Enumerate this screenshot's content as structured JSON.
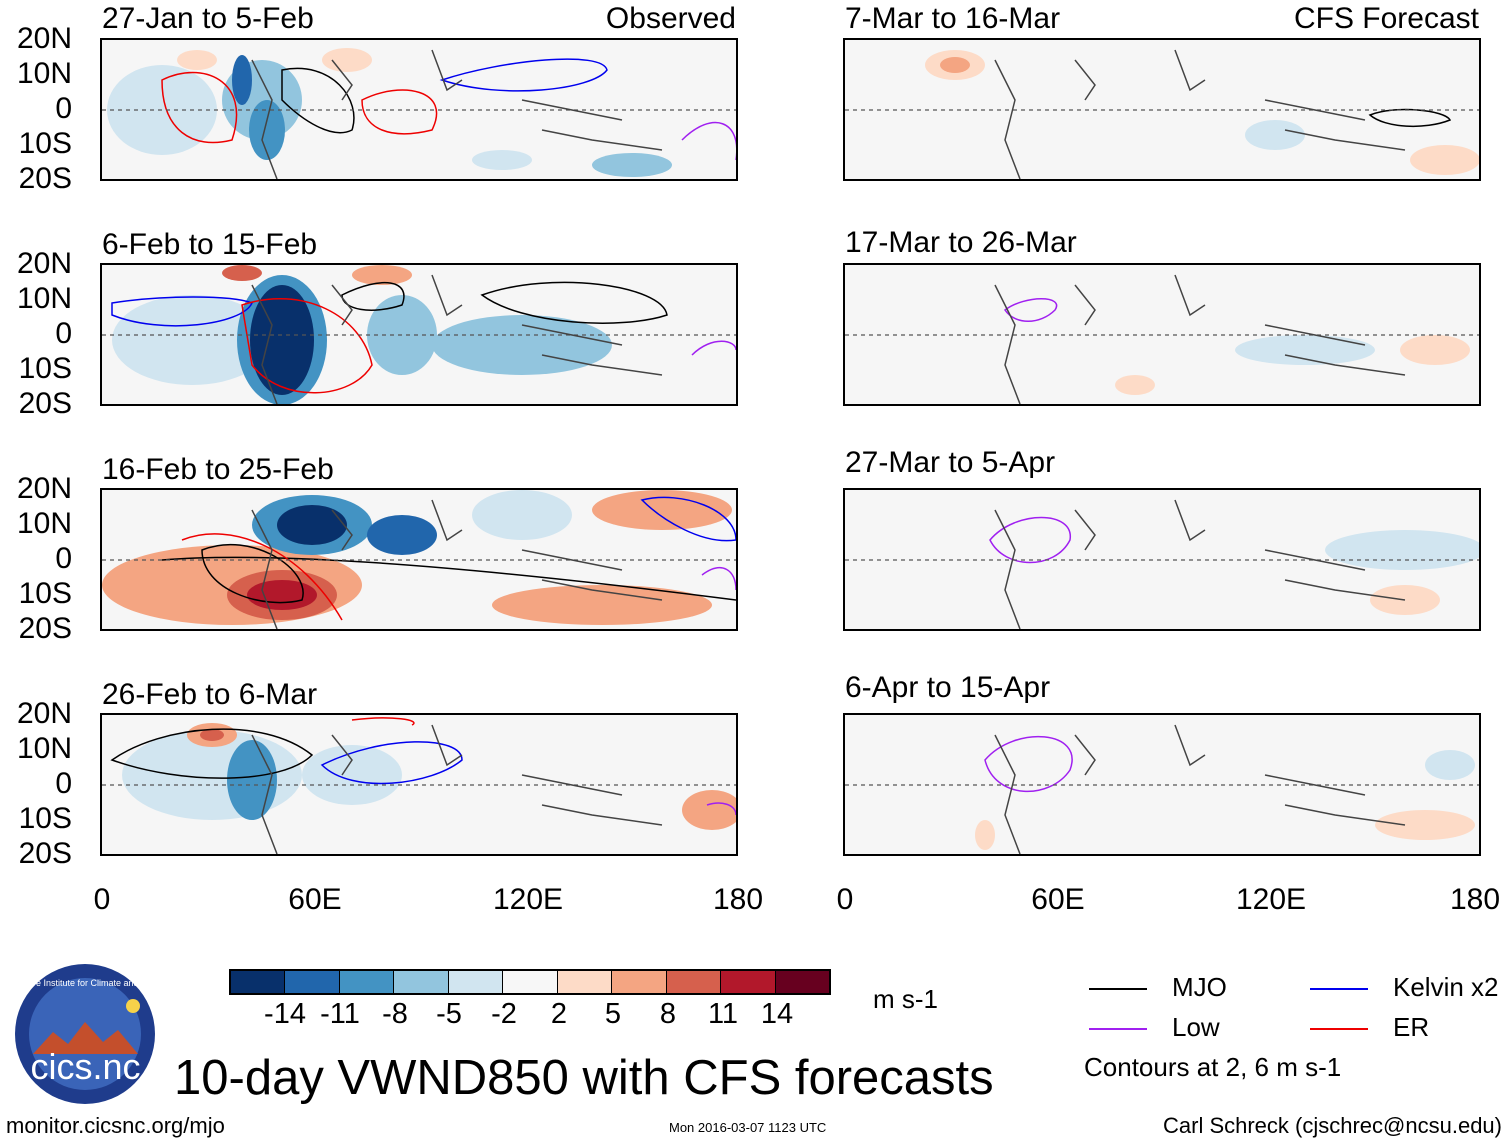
{
  "figure": {
    "main_title": "10-day VWND850 with CFS forecasts",
    "observed_tag": "Observed",
    "forecast_tag": "CFS Forecast",
    "lat_ticks": [
      "20N",
      "10N",
      "0",
      "10S",
      "20S"
    ],
    "lon_ticks": [
      "0",
      "60E",
      "120E",
      "180"
    ]
  },
  "panels": {
    "observed": [
      {
        "title": "27-Jan to 5-Feb"
      },
      {
        "title": "6-Feb to 15-Feb"
      },
      {
        "title": "16-Feb to 25-Feb"
      },
      {
        "title": "26-Feb to 6-Mar"
      }
    ],
    "forecast": [
      {
        "title": "7-Mar to 16-Mar"
      },
      {
        "title": "17-Mar to 26-Mar"
      },
      {
        "title": "27-Mar to 5-Apr"
      },
      {
        "title": "6-Apr to 15-Apr"
      }
    ]
  },
  "colorbar": {
    "unit": "m s-1",
    "labels": [
      "-14",
      "-11",
      "-8",
      "-5",
      "-2",
      "2",
      "5",
      "8",
      "11",
      "14"
    ],
    "colors": [
      "#08306b",
      "#2166ac",
      "#4393c3",
      "#92c5de",
      "#d1e5f0",
      "#f7f7f7",
      "#fddbc7",
      "#f4a582",
      "#d6604d",
      "#b2182b",
      "#67001f"
    ]
  },
  "legend": {
    "items": [
      {
        "label": "MJO",
        "color": "#000000"
      },
      {
        "label": "Kelvin x2",
        "color": "#0000ee"
      },
      {
        "label": "Low",
        "color": "#a020f0"
      },
      {
        "label": "ER",
        "color": "#ee0000"
      }
    ],
    "contour_note": "Contours at 2, 6 m s-1"
  },
  "logo": {
    "text": "cics.nc",
    "arc_text": "Cooperative Institute for Climate and Satellites"
  },
  "footer": {
    "url": "monitor.cicsnc.org/mjo",
    "timestamp": "Mon 2016-03-07 1123 UTC",
    "author": "Carl Schreck (cjschrec@ncsu.edu)"
  }
}
